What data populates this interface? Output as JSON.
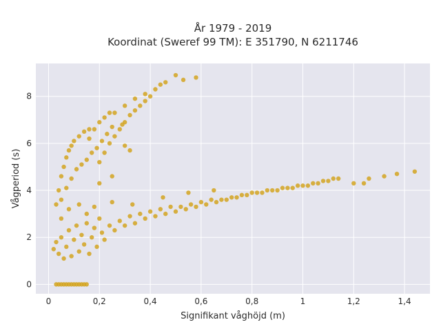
{
  "chart_data": {
    "type": "scatter",
    "title_line1": "År 1979 - 2019",
    "title_line2": "Koordinat (Sweref 99 TM): E 351790, N 6211746",
    "xlabel": "Signifikant våghöjd (m)",
    "ylabel": "Vågperiod (s)",
    "xlim": [
      -0.05,
      1.5
    ],
    "ylim": [
      -0.4,
      9.4
    ],
    "x_ticks": [
      0,
      0.2,
      0.4,
      0.6,
      0.8,
      1,
      1.2,
      1.4
    ],
    "x_tick_labels": [
      "0",
      "0,2",
      "0,4",
      "0,6",
      "0,8",
      "1",
      "1,2",
      "1,4"
    ],
    "y_ticks": [
      0,
      2,
      4,
      6,
      8
    ],
    "y_tick_labels": [
      "0",
      "2",
      "4",
      "6",
      "8"
    ],
    "grid": true,
    "point_color": "#d4a520",
    "background_color": "#e5e5ee",
    "series": [
      {
        "points": [
          [
            0.03,
            0
          ],
          [
            0.04,
            0
          ],
          [
            0.05,
            0
          ],
          [
            0.06,
            0
          ],
          [
            0.07,
            0
          ],
          [
            0.08,
            0
          ],
          [
            0.09,
            0
          ],
          [
            0.1,
            0
          ],
          [
            0.11,
            0
          ],
          [
            0.12,
            0
          ],
          [
            0.13,
            0
          ],
          [
            0.14,
            0
          ],
          [
            0.15,
            0
          ],
          [
            0.03,
            3.4
          ],
          [
            0.04,
            4.0
          ],
          [
            0.05,
            4.6
          ],
          [
            0.06,
            5.0
          ],
          [
            0.07,
            5.4
          ],
          [
            0.08,
            5.7
          ],
          [
            0.09,
            5.9
          ],
          [
            0.1,
            6.1
          ],
          [
            0.12,
            6.3
          ],
          [
            0.14,
            6.5
          ],
          [
            0.16,
            6.6
          ],
          [
            0.05,
            3.6
          ],
          [
            0.07,
            4.1
          ],
          [
            0.09,
            4.5
          ],
          [
            0.11,
            4.9
          ],
          [
            0.13,
            5.1
          ],
          [
            0.15,
            5.3
          ],
          [
            0.17,
            5.6
          ],
          [
            0.19,
            5.8
          ],
          [
            0.21,
            6.1
          ],
          [
            0.23,
            6.4
          ],
          [
            0.25,
            6.7
          ],
          [
            0.2,
            5.2
          ],
          [
            0.22,
            5.6
          ],
          [
            0.24,
            6.0
          ],
          [
            0.26,
            6.3
          ],
          [
            0.28,
            6.6
          ],
          [
            0.3,
            6.9
          ],
          [
            0.32,
            7.2
          ],
          [
            0.34,
            7.4
          ],
          [
            0.36,
            7.6
          ],
          [
            0.38,
            7.8
          ],
          [
            0.4,
            8.0
          ],
          [
            0.26,
            7.3
          ],
          [
            0.3,
            7.6
          ],
          [
            0.34,
            7.9
          ],
          [
            0.38,
            8.1
          ],
          [
            0.42,
            8.3
          ],
          [
            0.44,
            8.5
          ],
          [
            0.46,
            8.6
          ],
          [
            0.5,
            8.9
          ],
          [
            0.53,
            8.7
          ],
          [
            0.58,
            8.8
          ],
          [
            0.16,
            6.2
          ],
          [
            0.18,
            6.6
          ],
          [
            0.2,
            6.9
          ],
          [
            0.22,
            7.1
          ],
          [
            0.24,
            7.3
          ],
          [
            0.3,
            5.9
          ],
          [
            0.32,
            5.7
          ],
          [
            0.25,
            4.6
          ],
          [
            0.2,
            4.3
          ],
          [
            0.29,
            6.8
          ],
          [
            0.02,
            1.5
          ],
          [
            0.03,
            1.8
          ],
          [
            0.04,
            1.3
          ],
          [
            0.05,
            2.0
          ],
          [
            0.06,
            1.1
          ],
          [
            0.07,
            1.6
          ],
          [
            0.08,
            2.3
          ],
          [
            0.09,
            1.2
          ],
          [
            0.1,
            1.9
          ],
          [
            0.11,
            2.5
          ],
          [
            0.12,
            1.4
          ],
          [
            0.13,
            2.1
          ],
          [
            0.14,
            1.7
          ],
          [
            0.15,
            2.6
          ],
          [
            0.16,
            1.3
          ],
          [
            0.17,
            2.0
          ],
          [
            0.18,
            2.4
          ],
          [
            0.19,
            1.6
          ],
          [
            0.2,
            2.8
          ],
          [
            0.21,
            2.2
          ],
          [
            0.22,
            1.9
          ],
          [
            0.24,
            2.5
          ],
          [
            0.26,
            2.3
          ],
          [
            0.28,
            2.7
          ],
          [
            0.3,
            2.5
          ],
          [
            0.32,
            2.9
          ],
          [
            0.34,
            2.6
          ],
          [
            0.36,
            3.0
          ],
          [
            0.38,
            2.8
          ],
          [
            0.4,
            3.1
          ],
          [
            0.42,
            2.9
          ],
          [
            0.44,
            3.2
          ],
          [
            0.46,
            3.0
          ],
          [
            0.48,
            3.3
          ],
          [
            0.5,
            3.1
          ],
          [
            0.52,
            3.3
          ],
          [
            0.54,
            3.2
          ],
          [
            0.56,
            3.4
          ],
          [
            0.58,
            3.3
          ],
          [
            0.6,
            3.5
          ],
          [
            0.62,
            3.4
          ],
          [
            0.64,
            3.6
          ],
          [
            0.66,
            3.5
          ],
          [
            0.68,
            3.6
          ],
          [
            0.7,
            3.6
          ],
          [
            0.72,
            3.7
          ],
          [
            0.74,
            3.7
          ],
          [
            0.76,
            3.8
          ],
          [
            0.78,
            3.8
          ],
          [
            0.8,
            3.9
          ],
          [
            0.82,
            3.9
          ],
          [
            0.84,
            3.9
          ],
          [
            0.86,
            4.0
          ],
          [
            0.88,
            4.0
          ],
          [
            0.9,
            4.0
          ],
          [
            0.92,
            4.1
          ],
          [
            0.94,
            4.1
          ],
          [
            0.96,
            4.1
          ],
          [
            0.98,
            4.2
          ],
          [
            1.0,
            4.2
          ],
          [
            1.02,
            4.2
          ],
          [
            1.04,
            4.3
          ],
          [
            1.06,
            4.3
          ],
          [
            1.08,
            4.4
          ],
          [
            1.1,
            4.4
          ],
          [
            1.12,
            4.5
          ],
          [
            1.14,
            4.5
          ],
          [
            1.2,
            4.3
          ],
          [
            1.24,
            4.3
          ],
          [
            1.26,
            4.5
          ],
          [
            1.32,
            4.6
          ],
          [
            1.37,
            4.7
          ],
          [
            1.44,
            4.8
          ],
          [
            0.05,
            2.8
          ],
          [
            0.08,
            3.2
          ],
          [
            0.12,
            3.4
          ],
          [
            0.15,
            3.0
          ],
          [
            0.18,
            3.3
          ],
          [
            0.25,
            3.5
          ],
          [
            0.33,
            3.4
          ],
          [
            0.45,
            3.7
          ],
          [
            0.55,
            3.9
          ],
          [
            0.65,
            4.0
          ]
        ]
      }
    ]
  }
}
